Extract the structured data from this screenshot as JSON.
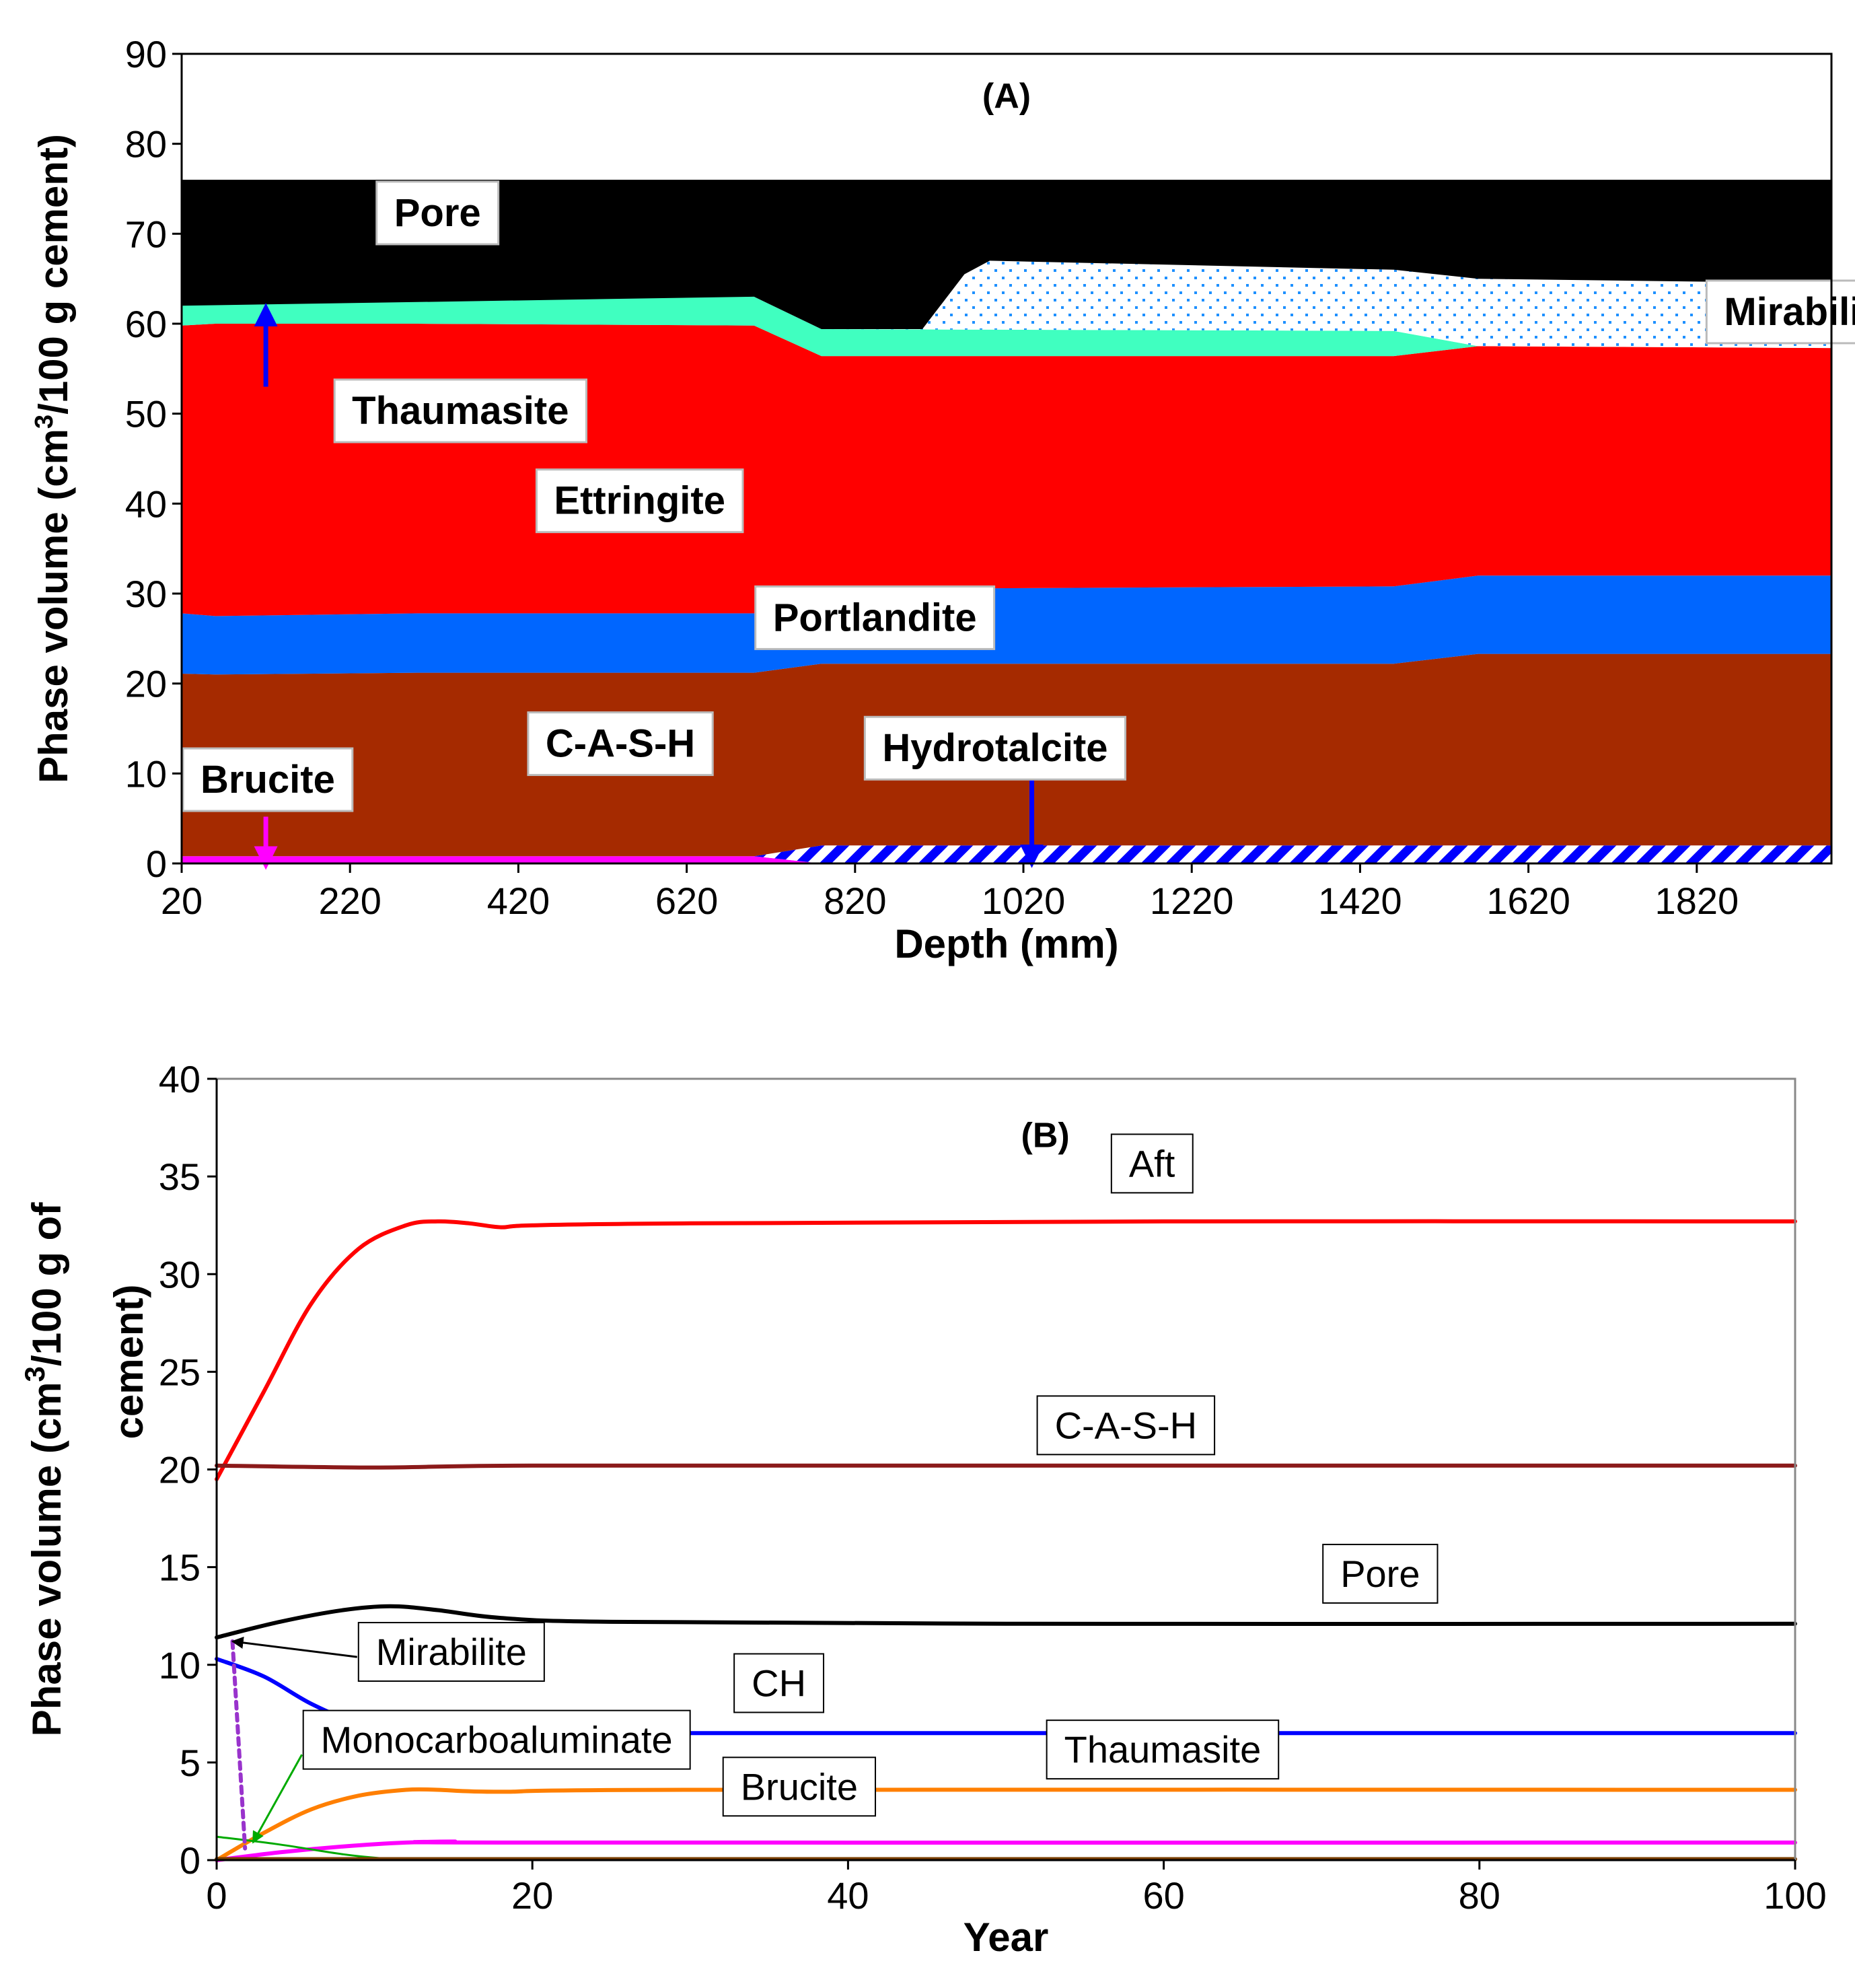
{
  "chart_data": [
    {
      "type": "area",
      "panel_label": "(A)",
      "title": "",
      "xlabel": "Depth (mm)",
      "ylabel_parts": [
        "Phase volume (cm",
        "3",
        "/100 g cement)"
      ],
      "xlim": [
        20,
        1980
      ],
      "ylim": [
        0,
        90
      ],
      "xticks": [
        20,
        220,
        420,
        620,
        820,
        1020,
        1220,
        1420,
        1620,
        1820
      ],
      "yticks": [
        0,
        10,
        20,
        30,
        40,
        50,
        60,
        70,
        80,
        90
      ],
      "grid": false,
      "boundaries": [
        {
          "name": "Brucite",
          "x": [
            20,
            700,
            780,
            1980
          ],
          "y": [
            0.8,
            0.8,
            0,
            0
          ]
        },
        {
          "name": "Hydrotalcite",
          "x": [
            20,
            700,
            780,
            1980
          ],
          "y": [
            0.8,
            0.8,
            2.0,
            2.0
          ]
        },
        {
          "name": "C-A-S-H",
          "x": [
            20,
            60,
            300,
            700,
            780,
            1460,
            1560,
            1980
          ],
          "y": [
            21.1,
            21.0,
            21.2,
            21.2,
            22.2,
            22.2,
            23.3,
            23.3
          ]
        },
        {
          "name": "Portlandite",
          "x": [
            20,
            60,
            300,
            700,
            780,
            1460,
            1560,
            1980
          ],
          "y": [
            27.8,
            27.5,
            27.8,
            27.8,
            30.5,
            30.8,
            32.0,
            32.0
          ]
        },
        {
          "name": "Ettringite",
          "x": [
            20,
            60,
            300,
            700,
            780,
            1460,
            1560,
            1980
          ],
          "y": [
            59.8,
            60.0,
            60.0,
            59.8,
            56.4,
            56.4,
            57.5,
            57.3
          ]
        },
        {
          "name": "Thaumasite",
          "x": [
            20,
            60,
            300,
            700,
            780,
            1460,
            1560,
            1980
          ],
          "y": [
            62.0,
            63.5,
            63.2,
            63.0,
            59.4,
            59.2,
            57.5,
            57.3
          ]
        },
        {
          "name": "Mirabilite",
          "x": [
            20,
            700,
            780,
            900,
            950,
            980,
            1460,
            1560,
            1980
          ],
          "y": [
            62.0,
            63.0,
            59.4,
            59.4,
            65.5,
            67.0,
            66.0,
            65.0,
            64.5
          ]
        },
        {
          "name": "Pore",
          "x": [
            20,
            1980
          ],
          "y": [
            76,
            76
          ]
        }
      ],
      "areas": [
        {
          "name": "Brucite",
          "lower": null,
          "upper": "Brucite",
          "color": "#ff00ff",
          "pattern": "solid"
        },
        {
          "name": "Hydrotalcite",
          "lower": "Brucite",
          "upper": "Hydrotalcite",
          "color": "#0000ff",
          "pattern": "hatch"
        },
        {
          "name": "C-A-S-H",
          "lower": "Hydrotalcite",
          "upper": "C-A-S-H",
          "color": "#a52a00",
          "pattern": "solid"
        },
        {
          "name": "Portlandite",
          "lower": "C-A-S-H",
          "upper": "Portlandite",
          "color": "#0066ff",
          "pattern": "solid"
        },
        {
          "name": "Ettringite",
          "lower": "Portlandite",
          "upper": "Ettringite",
          "color": "#ff0000",
          "pattern": "solid"
        },
        {
          "name": "Thaumasite",
          "lower": "Ettringite",
          "upper": "Thaumasite",
          "color": "#40ffc0",
          "pattern": "solid"
        },
        {
          "name": "Mirabilite",
          "lower": "Thaumasite",
          "upper": "Mirabilite",
          "color": "#1e90ff",
          "pattern": "dots"
        },
        {
          "name": "Pore",
          "lower": "Mirabilite",
          "upper": "Pore",
          "color": "#000000",
          "pattern": "solid"
        }
      ],
      "labels": [
        {
          "text": "Pore",
          "x": 250,
          "y": 72
        },
        {
          "text": "Thaumasite",
          "x": 200,
          "y": 50
        },
        {
          "text": "Mirabilite",
          "x": 1830,
          "y": 61
        },
        {
          "text": "Ettringite",
          "x": 440,
          "y": 40
        },
        {
          "text": "Portlandite",
          "x": 700,
          "y": 27
        },
        {
          "text": "C-A-S-H",
          "x": 430,
          "y": 13
        },
        {
          "text": "Hydrotalcite",
          "x": 830,
          "y": 12.5
        },
        {
          "text": "Brucite",
          "x": 20,
          "y": 9
        }
      ],
      "arrows": [
        {
          "name": "thaumasite-arrow",
          "x": 120,
          "y_from": 53,
          "y_to": 61,
          "color": "#0000ff"
        },
        {
          "name": "brucite-arrow",
          "x": 120,
          "y_from": 5.2,
          "y_to": 0.6,
          "color": "#ff00ff"
        },
        {
          "name": "hydrotalcite-arrow",
          "x": 1030,
          "y_from": 10.5,
          "y_to": 0.8,
          "color": "#0000ff"
        }
      ]
    },
    {
      "type": "line",
      "panel_label": "(B)",
      "title": "",
      "xlabel": "Year",
      "ylabel_line1_parts": [
        "Phase volume (cm",
        "3",
        "/100 g of"
      ],
      "ylabel_line2": "cement)",
      "xlim": [
        0,
        100
      ],
      "ylim": [
        0,
        40
      ],
      "xticks": [
        0,
        20,
        40,
        60,
        80,
        100
      ],
      "yticks": [
        0,
        5,
        10,
        15,
        20,
        25,
        30,
        35,
        40
      ],
      "grid": false,
      "series": [
        {
          "name": "Aft",
          "color": "#ff0000",
          "dash": "",
          "x": [
            0,
            3,
            6,
            9,
            12,
            14,
            16,
            18,
            20,
            30,
            60,
            100
          ],
          "y": [
            19.5,
            24.0,
            28.5,
            31.3,
            32.5,
            32.7,
            32.6,
            32.4,
            32.5,
            32.6,
            32.7,
            32.7
          ]
        },
        {
          "name": "C-A-S-H",
          "color": "#8b1a1a",
          "dash": "",
          "x": [
            0,
            10,
            20,
            50,
            100
          ],
          "y": [
            20.2,
            20.1,
            20.2,
            20.2,
            20.2
          ]
        },
        {
          "name": "Pore",
          "color": "#000000",
          "dash": "",
          "x": [
            0,
            4,
            8,
            11,
            14,
            18,
            25,
            50,
            100
          ],
          "y": [
            11.4,
            12.2,
            12.8,
            13.0,
            12.8,
            12.4,
            12.2,
            12.1,
            12.1
          ]
        },
        {
          "name": "CH",
          "color": "#0000ff",
          "dash": "",
          "x": [
            0,
            3,
            6,
            9,
            12,
            15,
            20,
            50,
            100
          ],
          "y": [
            10.3,
            9.4,
            8.0,
            7.0,
            6.6,
            6.5,
            6.5,
            6.5,
            6.5
          ]
        },
        {
          "name": "Thaumasite",
          "color": "#ff7f00",
          "dash": "",
          "x": [
            0,
            3,
            6,
            9,
            12,
            14,
            18,
            30,
            100
          ],
          "y": [
            0,
            1.4,
            2.6,
            3.3,
            3.6,
            3.6,
            3.5,
            3.6,
            3.6
          ]
        },
        {
          "name": "Brucite",
          "color": "#ff00ff",
          "dash": "",
          "x": [
            0,
            4,
            8,
            12,
            15,
            20,
            100
          ],
          "y": [
            0,
            0.4,
            0.7,
            0.9,
            0.95,
            0.9,
            0.9
          ]
        },
        {
          "name": "Monocarboaluminate",
          "color": "#00aa00",
          "dash": "",
          "x": [
            0,
            4,
            8,
            11
          ],
          "y": [
            1.2,
            0.8,
            0.3,
            0.05
          ]
        },
        {
          "name": "Mirabilite",
          "color": "#9933cc",
          "dash": "10,8",
          "x": [
            1.0,
            1.8
          ],
          "y": [
            11.2,
            0.6
          ]
        },
        {
          "name": "baseline",
          "color": "#7b3f00",
          "dash": "",
          "x": [
            0,
            100
          ],
          "y": [
            0.05,
            0.05
          ]
        }
      ],
      "labels": [
        {
          "text": "Aft",
          "x": 56.6,
          "y": 35.5
        },
        {
          "text": "C-A-S-H",
          "x": 51.9,
          "y": 22.1
        },
        {
          "text": "Pore",
          "x": 70.0,
          "y": 14.5
        },
        {
          "text": "Mirabilite",
          "x": 8.9,
          "y": 10.5
        },
        {
          "text": "CH",
          "x": 32.7,
          "y": 8.9
        },
        {
          "text": "Monocarboaluminate",
          "x": 5.4,
          "y": 6.0
        },
        {
          "text": "Thaumasite",
          "x": 52.5,
          "y": 5.5
        },
        {
          "text": "Brucite",
          "x": 32.0,
          "y": 3.6
        }
      ],
      "arrows": [
        {
          "name": "mirabilite-pointer",
          "x_from": 8.9,
          "y_from": 10.4,
          "x_to": 1.0,
          "y_to": 11.2
        },
        {
          "name": "monocarboaluminate-pointer",
          "x_from": 5.4,
          "y_from": 5.4,
          "x_to": 2.3,
          "y_to": 0.9
        }
      ]
    }
  ]
}
